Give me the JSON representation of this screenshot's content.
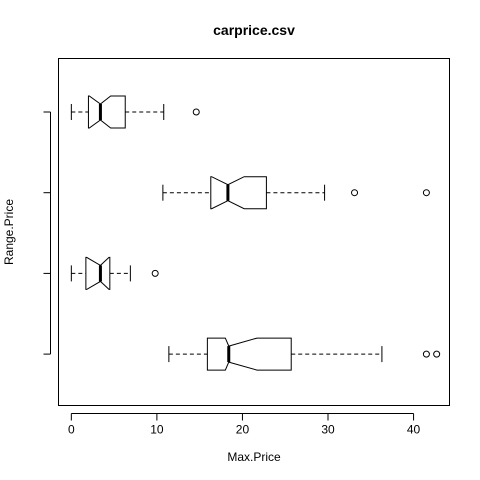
{
  "chart_data": {
    "type": "boxplot",
    "orientation": "horizontal",
    "notched": true,
    "title": "carprice.csv",
    "xlabel": "Max.Price",
    "ylabel": "Range.Price",
    "xlim": [
      -1.5,
      44.2
    ],
    "xticks": [
      0,
      10,
      20,
      30,
      40
    ],
    "xtick_labels": [
      "0",
      "10",
      "20",
      "30",
      "40"
    ],
    "groups": 4,
    "yticks_labeled": false,
    "grid": false,
    "boxes": [
      {
        "whisker_low": 0,
        "q1": 2,
        "notch_low": 2.1,
        "median": 3.4,
        "notch_high": 4.6,
        "q3": 6.3,
        "whisker_high": 10.8,
        "outliers": [
          14.6
        ]
      },
      {
        "whisker_low": 10.7,
        "q1": 16.3,
        "notch_low": 16.4,
        "median": 18.3,
        "notch_high": 20.2,
        "q3": 22.8,
        "whisker_high": 29.6,
        "outliers": [
          33.1,
          41.5
        ]
      },
      {
        "whisker_low": 0,
        "q1": 1.7,
        "notch_low": 1.8,
        "median": 3.4,
        "notch_high": 4.4,
        "q3": 4.5,
        "whisker_high": 6.9,
        "outliers": [
          9.8
        ]
      },
      {
        "whisker_low": 11.4,
        "q1": 15.9,
        "notch_low": 18.0,
        "median": 18.4,
        "notch_high": 21.7,
        "q3": 25.7,
        "whisker_high": 36.3,
        "outliers": [
          41.5,
          42.7
        ]
      }
    ]
  }
}
